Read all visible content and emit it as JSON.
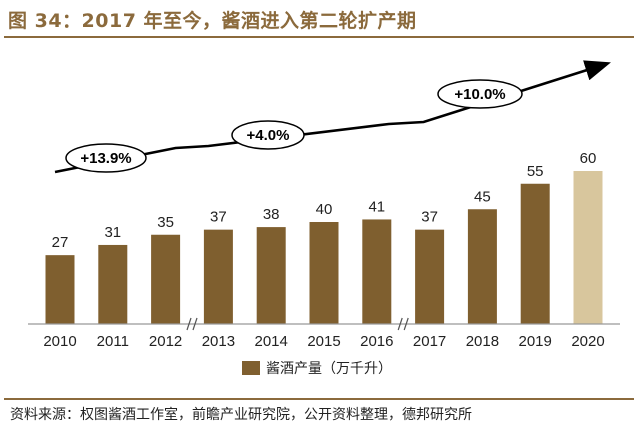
{
  "title": "图 34：2017 年至今，酱酒进入第二轮扩产期",
  "source": "资料来源：权图酱酒工作室，前瞻产业研究院，公开资料整理，德邦研究所",
  "colors": {
    "bar": "#7f5f2f",
    "highlight": "#d8c69d",
    "accent": "#8b6a3c"
  },
  "chart_data": {
    "type": "bar",
    "categories": [
      "2010",
      "2011",
      "2012",
      "2013",
      "2014",
      "2015",
      "2016",
      "2017",
      "2018",
      "2019",
      "2020"
    ],
    "series": [
      {
        "name": "酱酒产量（万千升）",
        "values": [
          27,
          31,
          35,
          37,
          38,
          40,
          41,
          37,
          45,
          55,
          60
        ]
      }
    ],
    "highlight_index": 10,
    "ylim": [
      0,
      65
    ],
    "axis_breaks_after": [
      "2012",
      "2016"
    ],
    "annotations": [
      {
        "label": "+13.9%",
        "from": "2010",
        "to": "2012"
      },
      {
        "label": "+4.0%",
        "from": "2013",
        "to": "2016"
      },
      {
        "label": "+10.0%",
        "from": "2017",
        "to": "2020"
      }
    ],
    "legend": "酱酒产量（万千升）",
    "legend_position": "bottom",
    "xlabel": "",
    "ylabel": ""
  }
}
